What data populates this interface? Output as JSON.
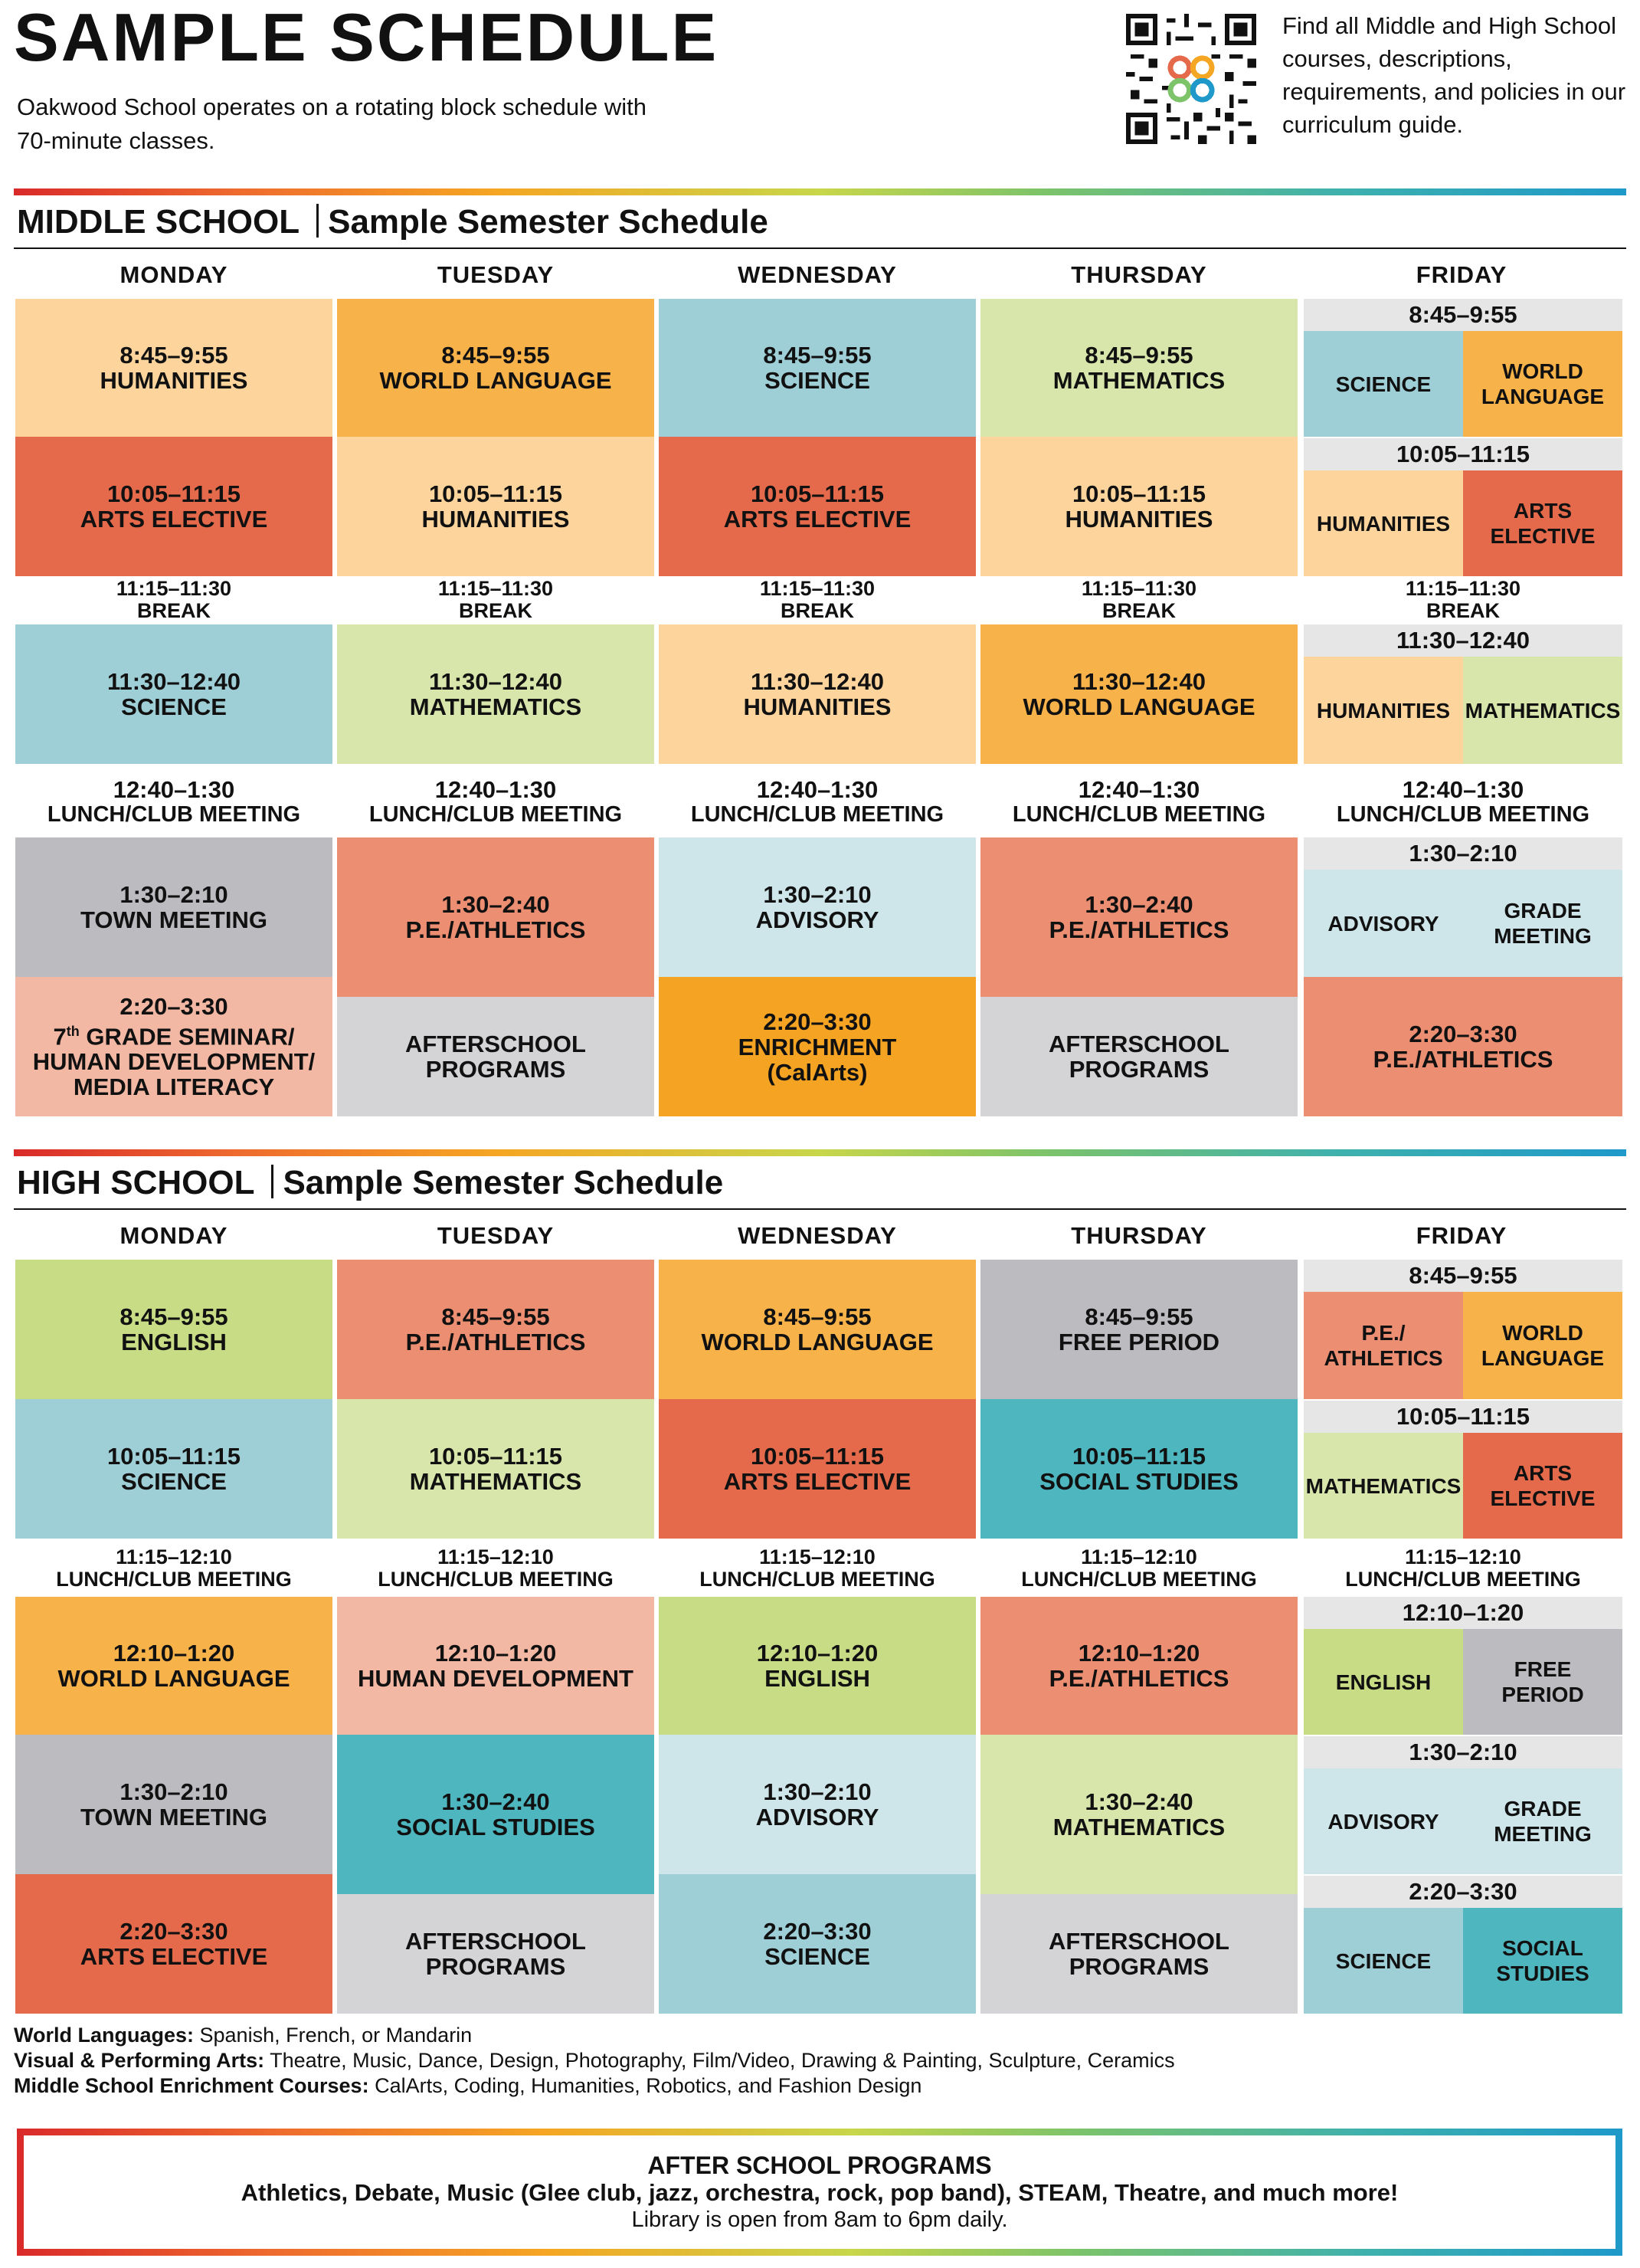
{
  "header": {
    "title": "SAMPLE SCHEDULE",
    "intro": "Oakwood School operates on a rotating block schedule with 70-minute classes.",
    "guide_text": "Find all Middle and High School courses, descriptions, requirements, and policies in our curriculum guide.",
    "qr_icon": "qr-code-icon"
  },
  "colors": {
    "peach": "#fdd59c",
    "orange": "#f7b24a",
    "deep_orange": "#f4a323",
    "blue": "#9fcfd6",
    "light_blue": "#cee5e9",
    "teal": "#4db6bf",
    "green": "#d9e6ab",
    "lime": "#c8dc86",
    "red": "#e46a4b",
    "salmon": "#ec8e72",
    "pink": "#f2b8a4",
    "grey": "#bcbcc0",
    "light_grey": "#d4d4d7"
  },
  "days": [
    "MONDAY",
    "TUESDAY",
    "WEDNESDAY",
    "THURSDAY",
    "FRIDAY"
  ],
  "middle": {
    "title": "MIDDLE SCHOOL",
    "subtitle": "Sample Semester Schedule",
    "mon": [
      {
        "time": "8:45–9:55",
        "name": "HUMANITIES"
      },
      {
        "time": "10:05–11:15",
        "name": "ARTS ELECTIVE"
      },
      {
        "time": "11:15–11:30",
        "name": "BREAK"
      },
      {
        "time": "11:30–12:40",
        "name": "SCIENCE"
      },
      {
        "time": "12:40–1:30",
        "name": "LUNCH/CLUB MEETING"
      },
      {
        "time": "1:30–2:10",
        "name": "TOWN MEETING"
      },
      {
        "time": "2:20–3:30",
        "name_a": "7",
        "name_sup": "th",
        "name_b": " GRADE SEMINAR/",
        "name_c": "HUMAN DEVELOPMENT/",
        "name_d": "MEDIA LITERACY"
      }
    ],
    "tue": [
      {
        "time": "8:45–9:55",
        "name": "WORLD LANGUAGE"
      },
      {
        "time": "10:05–11:15",
        "name": "HUMANITIES"
      },
      {
        "time": "11:15–11:30",
        "name": "BREAK"
      },
      {
        "time": "11:30–12:40",
        "name": "MATHEMATICS"
      },
      {
        "time": "12:40–1:30",
        "name": "LUNCH/CLUB MEETING"
      },
      {
        "time": "1:30–2:40",
        "name": "P.E./ATHLETICS"
      },
      {
        "name": "AFTERSCHOOL\nPROGRAMS"
      }
    ],
    "wed": [
      {
        "time": "8:45–9:55",
        "name": "SCIENCE"
      },
      {
        "time": "10:05–11:15",
        "name": "ARTS ELECTIVE"
      },
      {
        "time": "11:15–11:30",
        "name": "BREAK"
      },
      {
        "time": "11:30–12:40",
        "name": "HUMANITIES"
      },
      {
        "time": "12:40–1:30",
        "name": "LUNCH/CLUB MEETING"
      },
      {
        "time": "1:30–2:10",
        "name": "ADVISORY"
      },
      {
        "time": "2:20–3:30",
        "name": "ENRICHMENT",
        "sub": "(CalArts)"
      }
    ],
    "thu": [
      {
        "time": "8:45–9:55",
        "name": "MATHEMATICS"
      },
      {
        "time": "10:05–11:15",
        "name": "HUMANITIES"
      },
      {
        "time": "11:15–11:30",
        "name": "BREAK"
      },
      {
        "time": "11:30–12:40",
        "name": "WORLD LANGUAGE"
      },
      {
        "time": "12:40–1:30",
        "name": "LUNCH/CLUB MEETING"
      },
      {
        "time": "1:30–2:40",
        "name": "P.E./ATHLETICS"
      },
      {
        "name": "AFTERSCHOOL\nPROGRAMS"
      }
    ],
    "fri": {
      "h1": "8:45–9:55",
      "a1": "SCIENCE",
      "b1": "WORLD\nLANGUAGE",
      "h2": "10:05–11:15",
      "a2": "HUMANITIES",
      "b2": "ARTS ELECTIVE",
      "break_time": "11:15–11:30",
      "break_name": "BREAK",
      "h3": "11:30–12:40",
      "a3": "HUMANITIES",
      "b3": "MATHEMATICS",
      "lunch_time": "12:40–1:30",
      "lunch_name": "LUNCH/CLUB MEETING",
      "h4": "1:30–2:10",
      "a4": "ADVISORY",
      "b4": "GRADE\nMEETING",
      "last_time": "2:20–3:30",
      "last_name": "P.E./ATHLETICS"
    }
  },
  "high": {
    "title": "HIGH SCHOOL",
    "subtitle": "Sample Semester Schedule",
    "mon": [
      {
        "time": "8:45–9:55",
        "name": "ENGLISH"
      },
      {
        "time": "10:05–11:15",
        "name": "SCIENCE"
      },
      {
        "time": "11:15–12:10",
        "name": "LUNCH/CLUB MEETING"
      },
      {
        "time": "12:10–1:20",
        "name": "WORLD LANGUAGE"
      },
      {
        "time": "1:30–2:10",
        "name": "TOWN MEETING"
      },
      {
        "time": "2:20–3:30",
        "name": "ARTS ELECTIVE"
      }
    ],
    "tue": [
      {
        "time": "8:45–9:55",
        "name": "P.E./ATHLETICS"
      },
      {
        "time": "10:05–11:15",
        "name": "MATHEMATICS"
      },
      {
        "time": "11:15–12:10",
        "name": "LUNCH/CLUB MEETING"
      },
      {
        "time": "12:10–1:20",
        "name": "HUMAN DEVELOPMENT"
      },
      {
        "time": "1:30–2:40",
        "name": "SOCIAL STUDIES"
      },
      {
        "name": "AFTERSCHOOL\nPROGRAMS"
      }
    ],
    "wed": [
      {
        "time": "8:45–9:55",
        "name": "WORLD LANGUAGE"
      },
      {
        "time": "10:05–11:15",
        "name": "ARTS ELECTIVE"
      },
      {
        "time": "11:15–12:10",
        "name": "LUNCH/CLUB MEETING"
      },
      {
        "time": "12:10–1:20",
        "name": "ENGLISH"
      },
      {
        "time": "1:30–2:10",
        "name": "ADVISORY"
      },
      {
        "time": "2:20–3:30",
        "name": "SCIENCE"
      }
    ],
    "thu": [
      {
        "time": "8:45–9:55",
        "name": "FREE PERIOD"
      },
      {
        "time": "10:05–11:15",
        "name": "SOCIAL STUDIES"
      },
      {
        "time": "11:15–12:10",
        "name": "LUNCH/CLUB MEETING"
      },
      {
        "time": "12:10–1:20",
        "name": "P.E./ATHLETICS"
      },
      {
        "time": "1:30–2:40",
        "name": "MATHEMATICS"
      },
      {
        "name": "AFTERSCHOOL\nPROGRAMS"
      }
    ],
    "fri": {
      "h1": "8:45–9:55",
      "a1": "P.E./\nATHLETICS",
      "b1": "WORLD\nLANGUAGE",
      "h2": "10:05–11:15",
      "a2": "MATHEMATICS",
      "b2": "ARTS ELECTIVE",
      "lunch_time": "11:15–12:10",
      "lunch_name": "LUNCH/CLUB MEETING",
      "h3": "12:10–1:20",
      "a3": "ENGLISH",
      "b3": "FREE\nPERIOD",
      "h4": "1:30–2:10",
      "a4": "ADVISORY",
      "b4": "GRADE\nMEETING",
      "h5": "2:20–3:30",
      "a5": "SCIENCE",
      "b5": "SOCIAL\nSTUDIES"
    }
  },
  "notes": {
    "wl_label": "World Languages:",
    "wl_text": " Spanish, French, or Mandarin",
    "vpa_label": "Visual & Performing Arts:",
    "vpa_text": " Theatre, Music, Dance, Design, Photography, Film/Video, Drawing & Painting, Sculpture, Ceramics",
    "msec_label": "Middle School Enrichment Courses:",
    "msec_text": " CalArts, Coding, Humanities, Robotics, and Fashion Design"
  },
  "after_school": {
    "title": "AFTER SCHOOL PROGRAMS",
    "list": "Athletics, Debate, Music (Glee club, jazz, orchestra, rock, pop band), STEAM, Theatre, and much more!",
    "library": "Library is open from 8am to 6pm daily."
  }
}
